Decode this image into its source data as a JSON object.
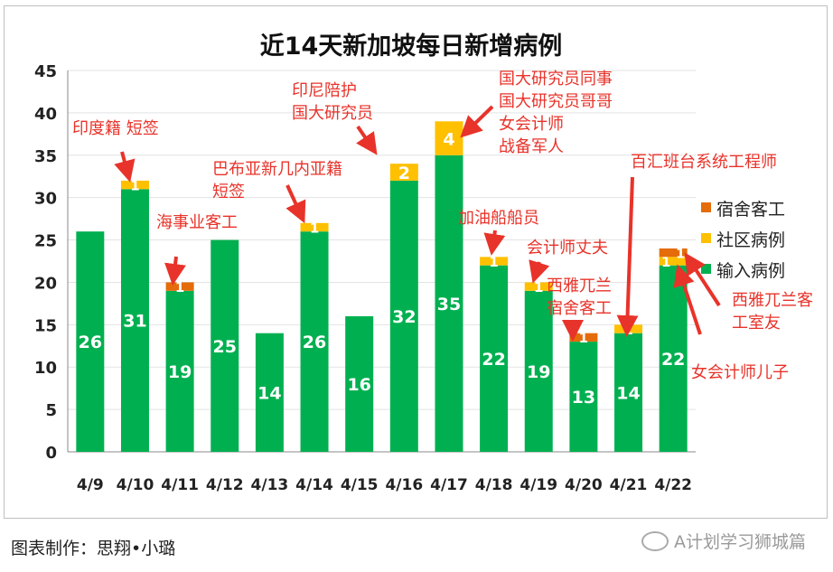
{
  "chart_data": {
    "type": "bar",
    "stacked": true,
    "title": "近14天新加坡每日新增病例",
    "categories": [
      "4/9",
      "4/10",
      "4/11",
      "4/12",
      "4/13",
      "4/14",
      "4/15",
      "4/16",
      "4/17",
      "4/18",
      "4/19",
      "4/20",
      "4/21",
      "4/22"
    ],
    "series": [
      {
        "name": "输入病例",
        "color": "#00b050",
        "values": [
          26,
          31,
          19,
          25,
          14,
          26,
          16,
          32,
          35,
          22,
          19,
          13,
          14,
          22
        ]
      },
      {
        "name": "社区病例",
        "color": "#ffc000",
        "values": [
          0,
          1,
          0,
          0,
          0,
          1,
          0,
          2,
          4,
          1,
          1,
          0,
          1,
          1
        ]
      },
      {
        "name": "宿舍客工",
        "color": "#e46c0a",
        "values": [
          0,
          0,
          1,
          0,
          0,
          0,
          0,
          0,
          0,
          0,
          0,
          1,
          0,
          1
        ]
      }
    ],
    "ylim": [
      0,
      45
    ],
    "yticks": [
      0,
      5,
      10,
      15,
      20,
      25,
      30,
      35,
      40,
      45
    ],
    "grid": true,
    "legend_placement": "right",
    "annotation_color": "#e8332a",
    "annotations": [
      {
        "category": "4/10",
        "lines": [
          "印度籍 短签"
        ]
      },
      {
        "category": "4/11",
        "lines": [
          "海事业客工"
        ]
      },
      {
        "category": "4/14",
        "lines": [
          "巴布亚新几内亚籍",
          "短签"
        ]
      },
      {
        "category": "4/16",
        "lines": [
          "印尼陪护",
          "国大研究员"
        ]
      },
      {
        "category": "4/17",
        "lines": [
          "国大研究员同事",
          "国大研究员哥哥",
          "女会计师",
          "战备军人"
        ]
      },
      {
        "category": "4/18",
        "lines": [
          "加油船船员"
        ]
      },
      {
        "category": "4/19",
        "lines": [
          "会计师丈夫"
        ]
      },
      {
        "category": "4/20",
        "lines": [
          "西雅兀兰",
          "宿舍客工"
        ]
      },
      {
        "category": "4/21",
        "lines": [
          "百汇班台系统工程师"
        ]
      },
      {
        "category": "4/22",
        "lines": [
          "西雅兀兰客",
          "工室友"
        ]
      },
      {
        "category": "4/22",
        "lines": [
          "女会计师儿子"
        ]
      }
    ]
  },
  "footer": {
    "credit": "图表制作：思翔•小璐",
    "watermark": "A计划学习狮城篇"
  }
}
